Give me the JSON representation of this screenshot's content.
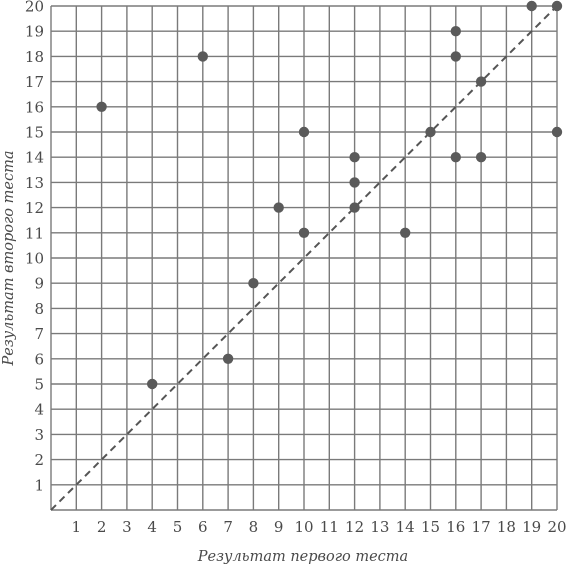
{
  "chart_data": {
    "type": "scatter",
    "title": "",
    "xlabel": "Результат первого теста",
    "ylabel": "Результат второго теста",
    "xlim": [
      0,
      20
    ],
    "ylim": [
      0,
      20
    ],
    "x_ticks": [
      1,
      2,
      3,
      4,
      5,
      6,
      7,
      8,
      9,
      10,
      11,
      12,
      13,
      14,
      15,
      16,
      17,
      18,
      19,
      20
    ],
    "y_ticks": [
      1,
      2,
      3,
      4,
      5,
      6,
      7,
      8,
      9,
      10,
      11,
      12,
      13,
      14,
      15,
      16,
      17,
      18,
      19,
      20
    ],
    "grid": true,
    "reference_line": {
      "style": "dashed",
      "from": [
        0,
        0
      ],
      "to": [
        20,
        20
      ]
    },
    "points": [
      {
        "x": 2,
        "y": 16
      },
      {
        "x": 4,
        "y": 5
      },
      {
        "x": 6,
        "y": 18
      },
      {
        "x": 7,
        "y": 6
      },
      {
        "x": 8,
        "y": 9
      },
      {
        "x": 9,
        "y": 12
      },
      {
        "x": 10,
        "y": 15
      },
      {
        "x": 10,
        "y": 11
      },
      {
        "x": 12,
        "y": 14
      },
      {
        "x": 12,
        "y": 13
      },
      {
        "x": 12,
        "y": 12
      },
      {
        "x": 14,
        "y": 11
      },
      {
        "x": 15,
        "y": 15
      },
      {
        "x": 16,
        "y": 19
      },
      {
        "x": 16,
        "y": 18
      },
      {
        "x": 16,
        "y": 14
      },
      {
        "x": 17,
        "y": 17
      },
      {
        "x": 17,
        "y": 14
      },
      {
        "x": 19,
        "y": 20
      },
      {
        "x": 20,
        "y": 20
      },
      {
        "x": 20,
        "y": 15
      }
    ]
  },
  "colors": {
    "grid": "#7a7a7a",
    "points": "#5a5a5a",
    "diagonal": "#555555",
    "text": "#4a4a4a"
  }
}
